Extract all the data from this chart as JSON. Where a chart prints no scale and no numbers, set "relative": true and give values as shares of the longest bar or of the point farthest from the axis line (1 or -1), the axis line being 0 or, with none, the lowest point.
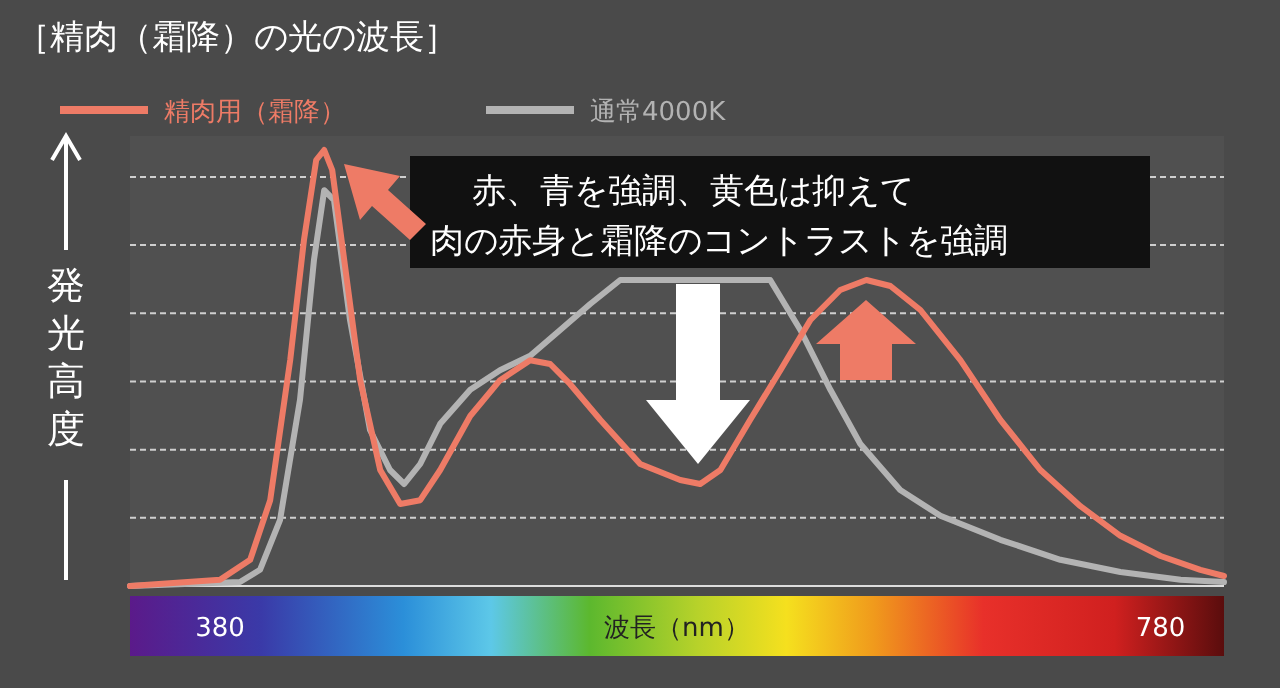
{
  "chart_data": {
    "type": "line",
    "title": "［精肉（霜降）の光の波長］",
    "xlabel": "波長（nm）",
    "ylabel": "発光高度",
    "relative": true,
    "xlim": [
      341.7,
      807
    ],
    "xticks": [
      380,
      780
    ],
    "grid": "y",
    "legend": "top left",
    "marker": "none",
    "line_style": "solid",
    "annotations": [
      "赤、青を強調、黄色は抑えて",
      "肉の赤身と霜降のコントラストを強調"
    ],
    "series": [
      {
        "name": "精肉用（霜降）",
        "color": "#ee7b66",
        "x": [
          341.7,
          380,
          392.8,
          401.3,
          409.8,
          415.7,
          420.9,
          424.3,
          427.7,
          432.8,
          439.6,
          448.1,
          456.6,
          465.1,
          473.6,
          486.4,
          499.1,
          511.9,
          520.4,
          528.9,
          541.7,
          558.7,
          575.7,
          584.2,
          592.8,
          605.5,
          618.3,
          631.1,
          643.8,
          654.9,
          665.1,
          677.9,
          694.9,
          711.9,
          728.9,
          745.9,
          762.9,
          780,
          797,
          807
        ],
        "values": [
          0,
          0.014,
          0.06,
          0.197,
          0.518,
          0.794,
          0.977,
          1,
          0.954,
          0.748,
          0.472,
          0.266,
          0.188,
          0.197,
          0.266,
          0.39,
          0.472,
          0.518,
          0.509,
          0.463,
          0.381,
          0.28,
          0.243,
          0.234,
          0.266,
          0.381,
          0.495,
          0.61,
          0.679,
          0.702,
          0.688,
          0.633,
          0.518,
          0.381,
          0.266,
          0.183,
          0.115,
          0.069,
          0.037,
          0.023
        ]
      },
      {
        "name": "通常4000K",
        "color": "#b3b3b3",
        "x": [
          341.7,
          388.5,
          397,
          405.5,
          414,
          420,
          424.3,
          428.5,
          435.3,
          443.8,
          452.3,
          458.3,
          465.1,
          473.6,
          486.4,
          499.1,
          511.9,
          524.7,
          537.4,
          550.2,
          614,
          626.8,
          639.6,
          652.3,
          669.3,
          686.4,
          711.9,
          737.4,
          762.9,
          788.5,
          807
        ],
        "values": [
          0,
          0.009,
          0.037,
          0.151,
          0.427,
          0.748,
          0.908,
          0.885,
          0.61,
          0.358,
          0.266,
          0.234,
          0.28,
          0.372,
          0.45,
          0.495,
          0.528,
          0.587,
          0.647,
          0.702,
          0.702,
          0.587,
          0.45,
          0.326,
          0.22,
          0.161,
          0.106,
          0.06,
          0.032,
          0.014,
          0.009
        ]
      }
    ]
  }
}
